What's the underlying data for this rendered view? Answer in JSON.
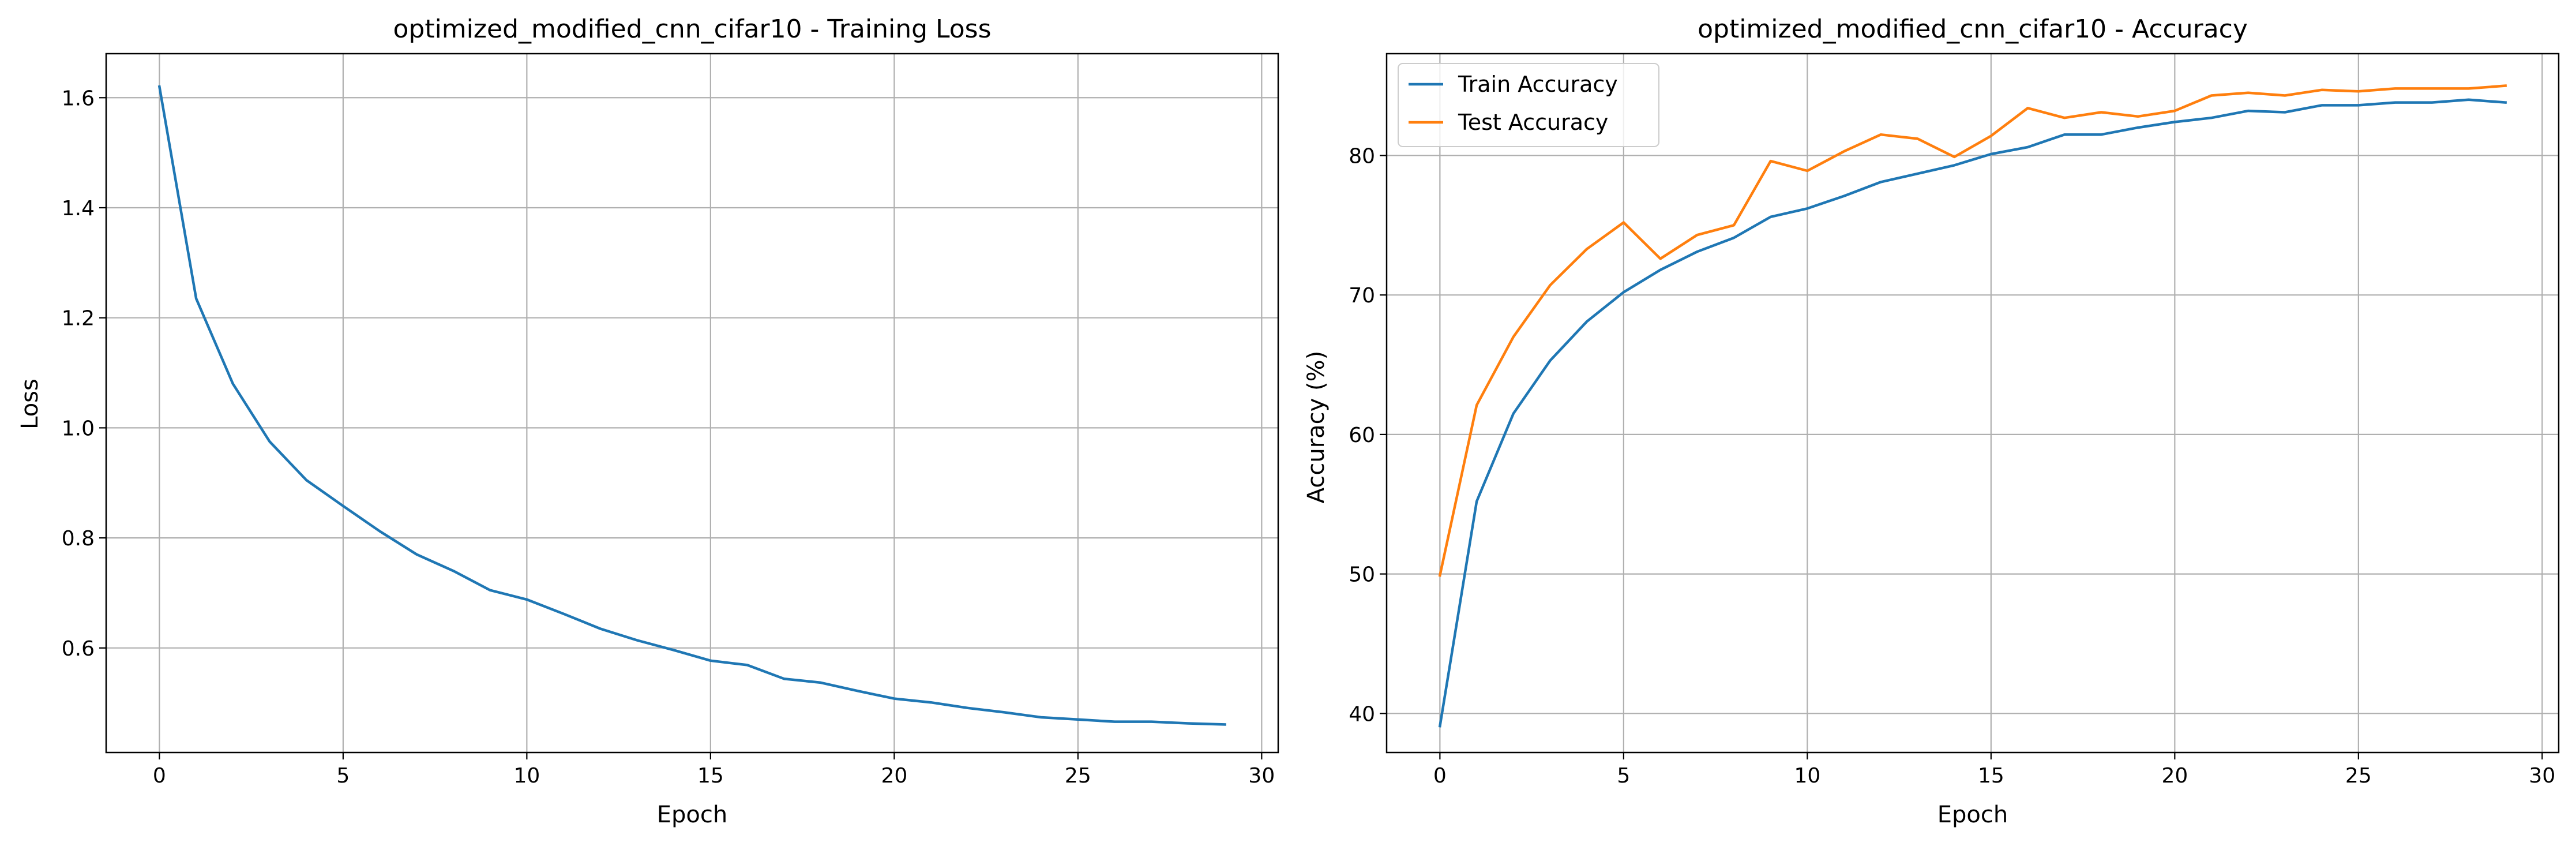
{
  "chart_data": [
    {
      "type": "line",
      "title": "optimized_modified_cnn_cifar10 - Training Loss",
      "xlabel": "Epoch",
      "ylabel": "Loss",
      "xlim": [
        -1.45,
        30.45
      ],
      "ylim": [
        0.41,
        1.68
      ],
      "xticks": [
        0,
        5,
        10,
        15,
        20,
        25,
        30
      ],
      "yticks": [
        0.6,
        0.8,
        1.0,
        1.2,
        1.4,
        1.6
      ],
      "ytick_labels": [
        "0.6",
        "0.8",
        "1.0",
        "1.2",
        "1.4",
        "1.6"
      ],
      "grid": true,
      "x": [
        0,
        1,
        2,
        3,
        4,
        5,
        6,
        7,
        8,
        9,
        10,
        11,
        12,
        13,
        14,
        15,
        16,
        17,
        18,
        19,
        20,
        21,
        22,
        23,
        24,
        25,
        26,
        27,
        28,
        29
      ],
      "series": [
        {
          "color": "#1f77b4",
          "values": [
            1.62,
            1.235,
            1.08,
            0.975,
            0.905,
            0.858,
            0.812,
            0.77,
            0.74,
            0.705,
            0.688,
            0.662,
            0.635,
            0.614,
            0.596,
            0.577,
            0.569,
            0.544,
            0.537,
            0.522,
            0.508,
            0.501,
            0.491,
            0.483,
            0.474,
            0.47,
            0.466,
            0.466,
            0.463,
            0.461
          ]
        }
      ]
    },
    {
      "type": "line",
      "title": "optimized_modified_cnn_cifar10 - Accuracy",
      "xlabel": "Epoch",
      "ylabel": "Accuracy (%)",
      "xlim": [
        -1.45,
        30.45
      ],
      "ylim": [
        37.2,
        87.3
      ],
      "xticks": [
        0,
        5,
        10,
        15,
        20,
        25,
        30
      ],
      "yticks": [
        40,
        50,
        60,
        70,
        80
      ],
      "ytick_labels": [
        "40",
        "50",
        "60",
        "70",
        "80"
      ],
      "grid": true,
      "legend": "top-left",
      "x": [
        0,
        1,
        2,
        3,
        4,
        5,
        6,
        7,
        8,
        9,
        10,
        11,
        12,
        13,
        14,
        15,
        16,
        17,
        18,
        19,
        20,
        21,
        22,
        23,
        24,
        25,
        26,
        27,
        28,
        29
      ],
      "series": [
        {
          "name": "Train Accuracy",
          "color": "#1f77b4",
          "values": [
            39.1,
            55.2,
            61.5,
            65.3,
            68.1,
            70.2,
            71.8,
            73.1,
            74.1,
            75.6,
            76.2,
            77.1,
            78.1,
            78.7,
            79.3,
            80.1,
            80.6,
            81.5,
            81.5,
            82.0,
            82.4,
            82.7,
            83.2,
            83.1,
            83.6,
            83.6,
            83.8,
            83.8,
            84.0,
            83.8
          ]
        },
        {
          "name": "Test Accuracy",
          "color": "#ff7f0e",
          "values": [
            49.9,
            62.1,
            67.0,
            70.7,
            73.3,
            75.2,
            72.6,
            74.3,
            75.0,
            79.6,
            78.9,
            80.3,
            81.5,
            81.2,
            79.9,
            81.4,
            83.4,
            82.7,
            83.1,
            82.8,
            83.2,
            84.3,
            84.5,
            84.3,
            84.7,
            84.6,
            84.8,
            84.8,
            84.8,
            85.0
          ]
        }
      ]
    }
  ]
}
